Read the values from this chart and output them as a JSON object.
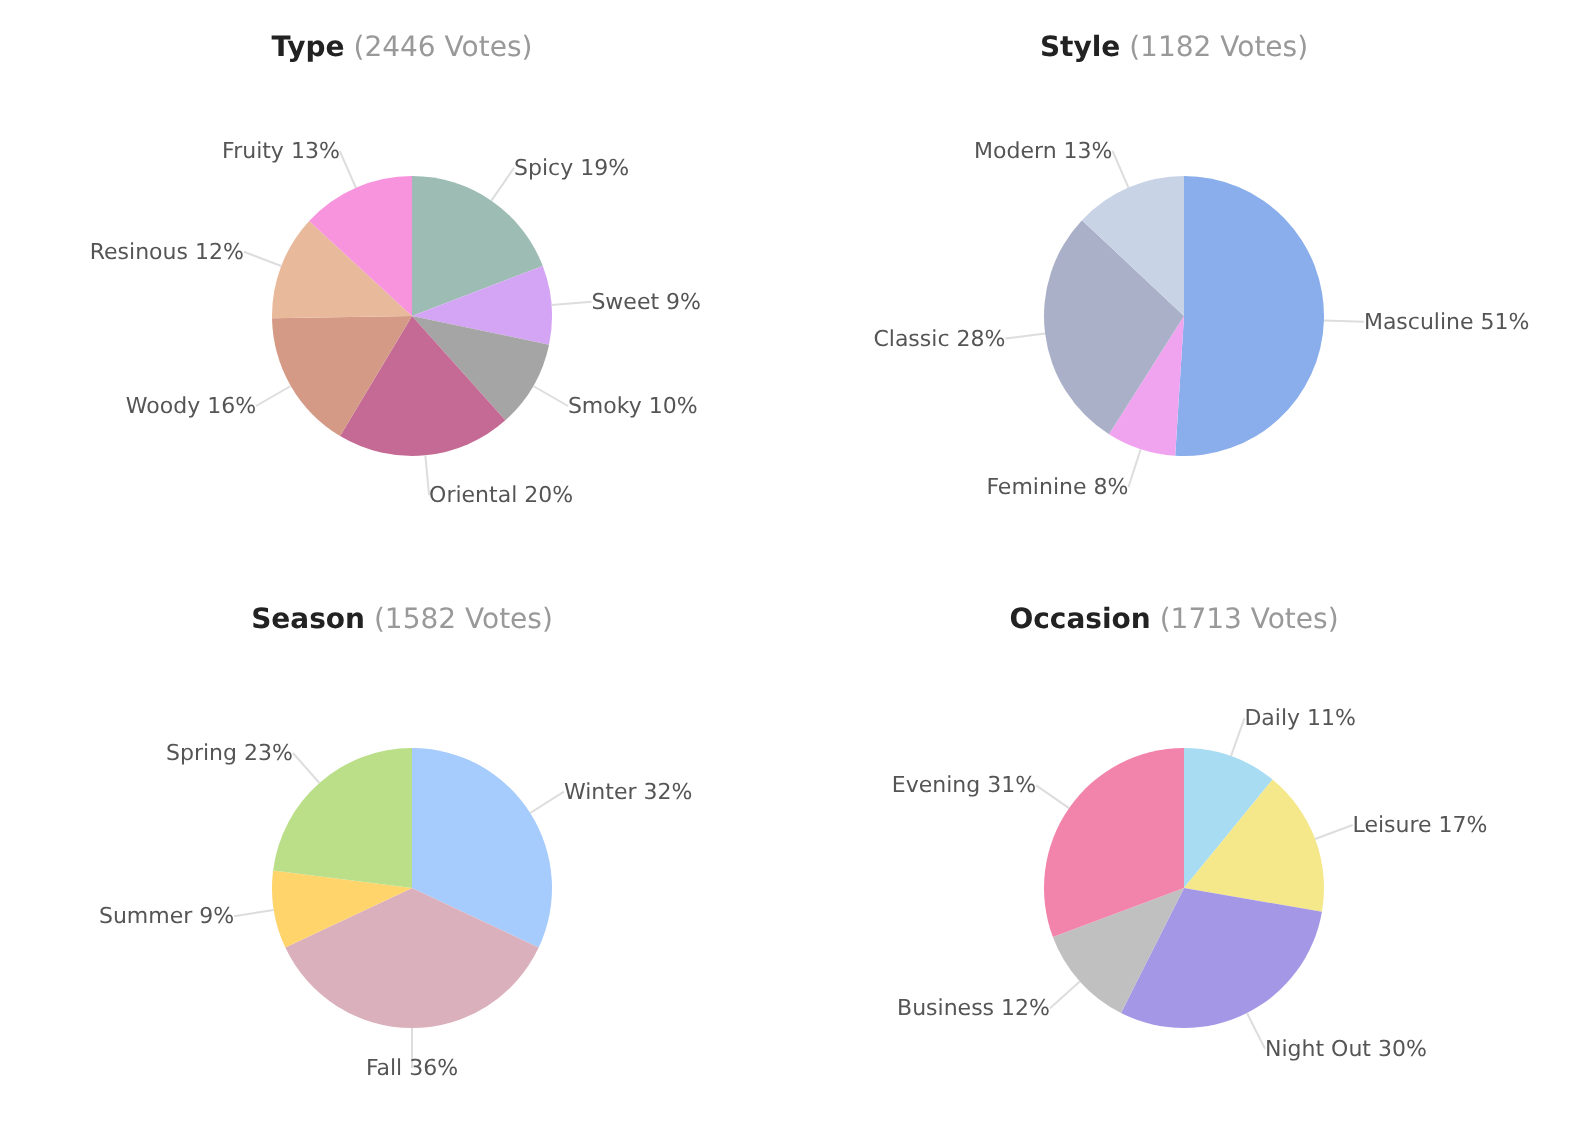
{
  "chart_data": [
    {
      "type": "pie",
      "title": "Type",
      "subtitle": "(2446 Votes)",
      "categories": [
        "Spicy",
        "Sweet",
        "Smoky",
        "Oriental",
        "Woody",
        "Resinous",
        "Fruity"
      ],
      "values": [
        19,
        9,
        10,
        20,
        16,
        12,
        13
      ],
      "value_labels": [
        "19%",
        "9%",
        "10%",
        "20%",
        "16%",
        "12%",
        "13%"
      ],
      "colors": [
        "#9dbcb4",
        "#d4a5f5",
        "#a5a5a5",
        "#c56a95",
        "#d49a86",
        "#e9b99c",
        "#f794dd"
      ],
      "legend": false
    },
    {
      "type": "pie",
      "title": "Style",
      "subtitle": "(1182 Votes)",
      "categories": [
        "Masculine",
        "Feminine",
        "Classic",
        "Modern"
      ],
      "values": [
        51,
        8,
        28,
        13
      ],
      "value_labels": [
        "51%",
        "8%",
        "28%",
        "13%"
      ],
      "colors": [
        "#8aaeec",
        "#f0a4ef",
        "#aab0c8",
        "#c9d3e6"
      ],
      "legend": false
    },
    {
      "type": "pie",
      "title": "Season",
      "subtitle": "(1582 Votes)",
      "categories": [
        "Winter",
        "Fall",
        "Summer",
        "Spring"
      ],
      "values": [
        32,
        36,
        9,
        23
      ],
      "value_labels": [
        "32%",
        "36%",
        "9%",
        "23%"
      ],
      "colors": [
        "#a6cbfd",
        "#dbb0bd",
        "#fed46b",
        "#badf88"
      ],
      "legend": false
    },
    {
      "type": "pie",
      "title": "Occasion",
      "subtitle": "(1713 Votes)",
      "categories": [
        "Daily",
        "Leisure",
        "Night Out",
        "Business",
        "Evening"
      ],
      "values": [
        11,
        17,
        30,
        12,
        31
      ],
      "value_labels": [
        "11%",
        "17%",
        "30%",
        "12%",
        "31%"
      ],
      "colors": [
        "#a8dcf2",
        "#f5e88a",
        "#a498e6",
        "#c0c0c0",
        "#f283ab"
      ],
      "legend": false
    }
  ]
}
